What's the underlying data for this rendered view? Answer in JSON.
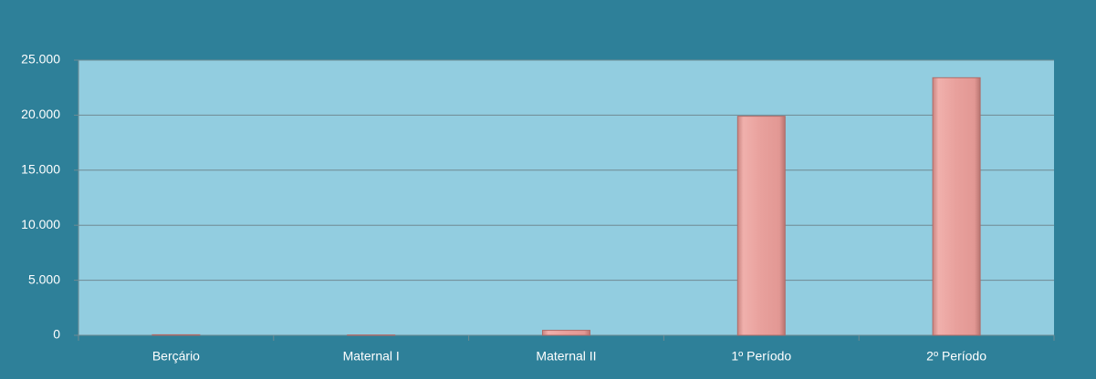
{
  "chart_data": {
    "type": "bar",
    "categories": [
      "Berçário",
      "Maternal I",
      "Maternal II",
      "1º Período",
      "2º Período"
    ],
    "values": [
      50,
      30,
      450,
      19900,
      23400
    ],
    "color": "#e8a09c",
    "ylim": [
      0,
      25000
    ],
    "yticks": [
      0,
      {
        "value": 5000,
        "label": "5.000"
      },
      {
        "value": 10000,
        "label": "10.000"
      },
      {
        "value": 15000,
        "label": "15.000"
      },
      {
        "value": 20000,
        "label": "20.000"
      },
      {
        "value": 25000,
        "label": "25.000"
      }
    ],
    "grid": true
  }
}
